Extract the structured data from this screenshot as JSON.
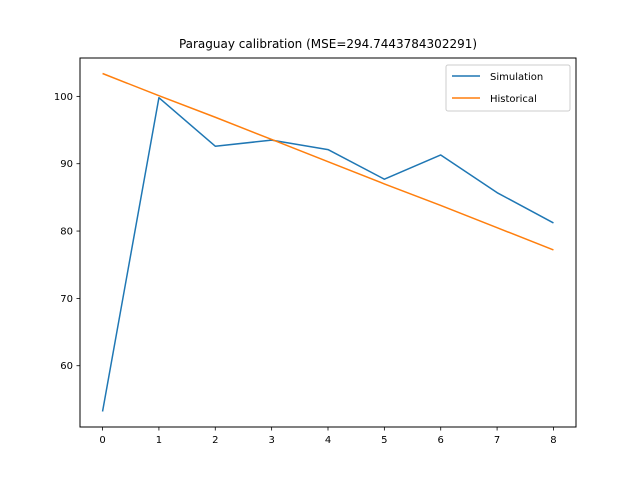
{
  "chart_data": {
    "type": "line",
    "title": "Paraguay calibration (MSE=294.7443784302291)",
    "xlabel": "",
    "ylabel": "",
    "x": [
      0,
      1,
      2,
      3,
      4,
      5,
      6,
      7,
      8
    ],
    "series": [
      {
        "name": "Simulation",
        "color": "#1f77b4",
        "values": [
          53.2,
          99.8,
          92.6,
          93.5,
          92.1,
          87.7,
          91.3,
          85.7,
          81.2
        ]
      },
      {
        "name": "Historical",
        "color": "#ff7f0e",
        "values": [
          103.4,
          100.1,
          96.9,
          93.6,
          90.3,
          87.0,
          83.8,
          80.5,
          77.2
        ]
      }
    ],
    "xlim": [
      -0.4,
      8.4
    ],
    "ylim": [
      50.9,
      105.7
    ],
    "xticks": [
      0,
      1,
      2,
      3,
      4,
      5,
      6,
      7,
      8
    ],
    "yticks": [
      60,
      70,
      80,
      90,
      100
    ],
    "grid": false,
    "legend_position": "top-right"
  }
}
